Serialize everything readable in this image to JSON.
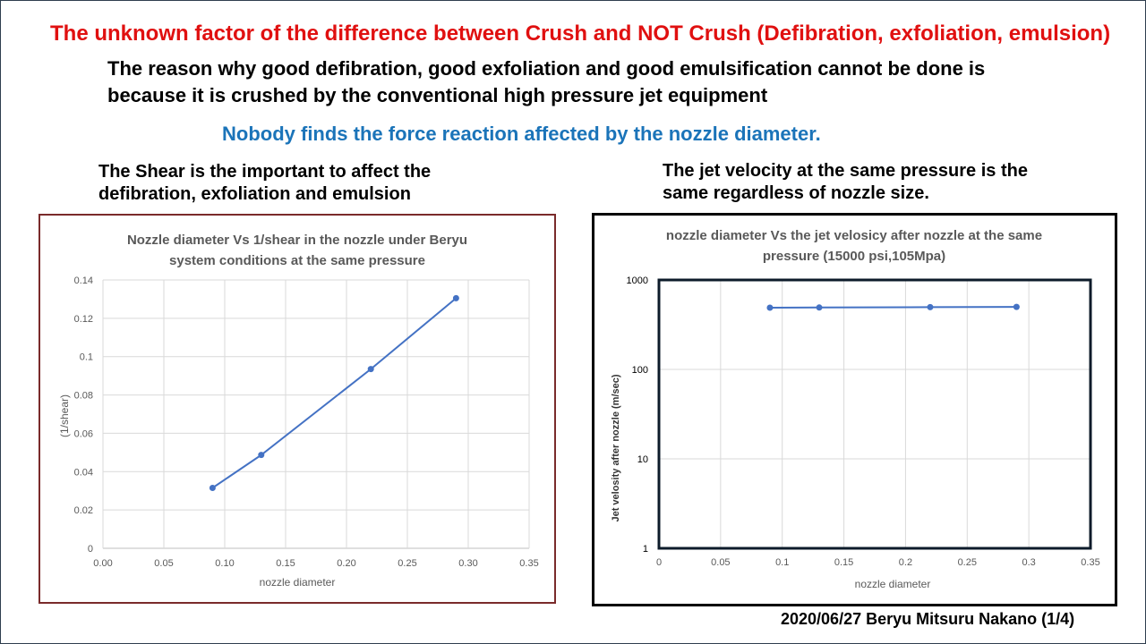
{
  "slide": {
    "title": "The unknown factor of the difference between Crush and NOT Crush (Defibration, exfoliation, emulsion)",
    "reason_line1": "The reason why good defibration, good exfoliation and good emulsification cannot be done is",
    "reason_line2": "because it is crushed by the conventional high pressure jet equipment",
    "highlight": "Nobody finds the force reaction affected by the nozzle diameter.",
    "left_heading_line1": "The Shear is the important to affect the",
    "left_heading_line2": "defibration, exfoliation and emulsion",
    "right_heading_line1": "The jet velocity at the same pressure is the",
    "right_heading_line2": "same regardless of nozzle size.",
    "footer": "2020/06/27 Beryu Mitsuru Nakano (1/4)",
    "colors": {
      "title": "#e01010",
      "highlight": "#1b74b9",
      "series": "#4472c4"
    }
  },
  "chart_data": [
    {
      "type": "line",
      "title_line1": "Nozzle diameter Vs 1/shear in the nozzle under Beryu",
      "title_line2": "system conditions at the same pressure",
      "xlabel": "nozzle diameter",
      "ylabel": "(1/shear)",
      "xlim": [
        0,
        0.35
      ],
      "ylim": [
        0,
        0.14
      ],
      "xticks": [
        "0.00",
        "0.05",
        "0.10",
        "0.15",
        "0.20",
        "0.25",
        "0.30",
        "0.35"
      ],
      "yticks": [
        "0",
        "0.02",
        "0.04",
        "0.06",
        "0.08",
        "0.1",
        "0.12",
        "0.14"
      ],
      "x": [
        0.09,
        0.13,
        0.22,
        0.29
      ],
      "y": [
        0.0315,
        0.0487,
        0.0935,
        0.1305
      ]
    },
    {
      "type": "line",
      "yscale": "log",
      "title_line1": "nozzle diameter Vs the jet velosicy after nozzle at the same",
      "title_line2": "pressure (15000 psi,105Mpa)",
      "xlabel": "nozzle diameter",
      "ylabel": "Jet velosity after nozzle (m/sec)",
      "xlim": [
        0,
        0.35
      ],
      "ylim": [
        1,
        1000
      ],
      "xticks": [
        "0",
        "0.05",
        "0.1",
        "0.15",
        "0.2",
        "0.25",
        "0.3",
        "0.35"
      ],
      "yticks": [
        "1",
        "10",
        "100",
        "1000"
      ],
      "x": [
        0.09,
        0.13,
        0.22,
        0.29
      ],
      "y": [
        490,
        492,
        497,
        500
      ]
    }
  ]
}
